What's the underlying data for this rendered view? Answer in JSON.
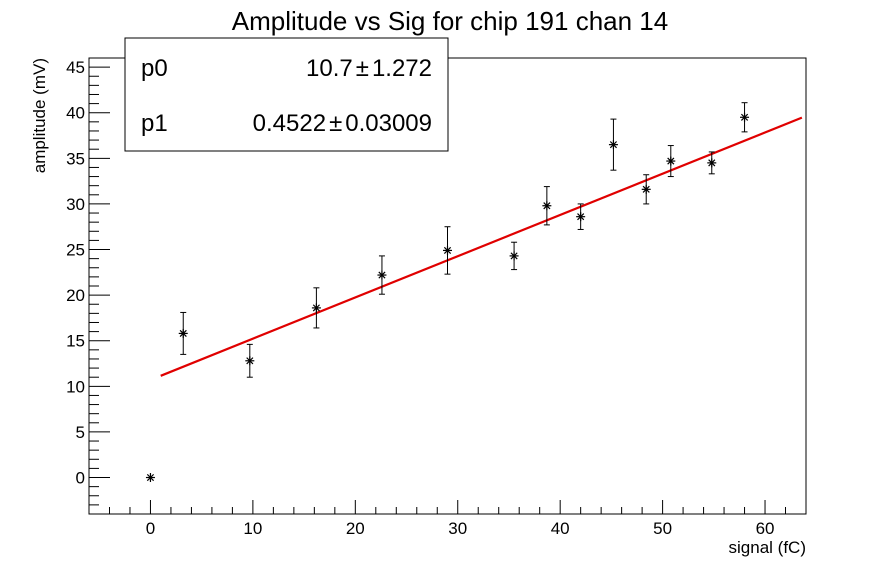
{
  "chart_data": {
    "type": "scatter",
    "title": "Amplitude vs Sig for chip 191 chan 14",
    "xlabel": "signal (fC)",
    "ylabel": "amplitude (mV)",
    "xlim": [
      -6,
      64
    ],
    "ylim": [
      -4,
      46
    ],
    "x_ticks": [
      0,
      10,
      20,
      30,
      40,
      50,
      60
    ],
    "y_ticks": [
      0,
      5,
      10,
      15,
      20,
      25,
      30,
      35,
      40,
      45
    ],
    "grid": false,
    "points": [
      {
        "x": 0.0,
        "y": 0.0,
        "err": 0.0
      },
      {
        "x": 3.2,
        "y": 15.8,
        "err": 2.3
      },
      {
        "x": 9.7,
        "y": 12.8,
        "err": 1.8
      },
      {
        "x": 16.2,
        "y": 18.6,
        "err": 2.2
      },
      {
        "x": 22.6,
        "y": 22.2,
        "err": 2.1
      },
      {
        "x": 29.0,
        "y": 24.9,
        "err": 2.6
      },
      {
        "x": 35.5,
        "y": 24.3,
        "err": 1.5
      },
      {
        "x": 38.7,
        "y": 29.8,
        "err": 2.1
      },
      {
        "x": 42.0,
        "y": 28.6,
        "err": 1.4
      },
      {
        "x": 45.2,
        "y": 36.5,
        "err": 2.8
      },
      {
        "x": 48.4,
        "y": 31.6,
        "err": 1.6
      },
      {
        "x": 50.8,
        "y": 34.7,
        "err": 1.7
      },
      {
        "x": 54.8,
        "y": 34.5,
        "err": 1.2
      },
      {
        "x": 58.0,
        "y": 39.5,
        "err": 1.6
      }
    ],
    "fit": {
      "p0": 10.7,
      "p1": 0.4522,
      "x_range": [
        1.0,
        63.6
      ],
      "color": "#e00000"
    },
    "stats_box": {
      "p0_label": "p0",
      "p0_value": "10.7",
      "p0_error": "1.272",
      "p1_label": "p1",
      "p1_value": "0.4522",
      "p1_error": "0.03009",
      "pm": "±"
    }
  }
}
